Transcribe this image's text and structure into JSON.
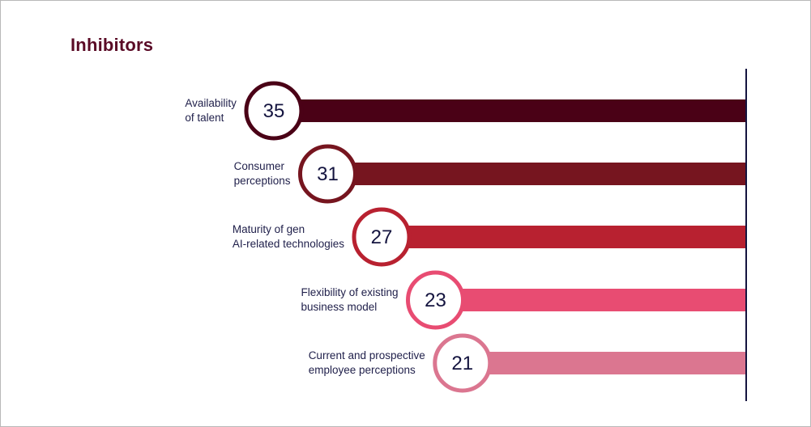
{
  "chart_data": {
    "type": "bar",
    "title": "Inhibitors",
    "orientation": "horizontal",
    "categories": [
      "Availability\nof talent",
      "Consumer\nperceptions",
      "Maturity of gen\nAI-related technologies",
      "Flexibility of existing\nbusiness model",
      "Current and prospective\nemployee perceptions"
    ],
    "values": [
      35,
      31,
      27,
      23,
      21
    ],
    "colors": [
      "#4a0116",
      "#76151f",
      "#b82130",
      "#e84c72",
      "#db7690"
    ],
    "axis_color": "#14143f",
    "xlabel": "",
    "ylabel": "",
    "xlim": [
      0,
      70
    ]
  }
}
